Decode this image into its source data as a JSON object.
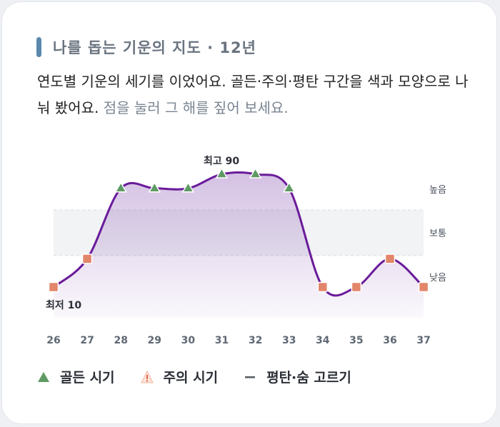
{
  "header": {
    "title": "나를 돕는 기운의 지도 · 12년",
    "desc_main": "연도별 기운의 세기를 이었어요. 골든·주의·평탄 구간을 색과 모양으로 나눠 봤어요.",
    "desc_hint": "점을 눌러 그 해를 짚어 보세요."
  },
  "chart_data": {
    "type": "line",
    "x": [
      "26",
      "27",
      "28",
      "29",
      "30",
      "31",
      "32",
      "33",
      "34",
      "35",
      "36",
      "37"
    ],
    "series": [
      {
        "values": [
          10,
          30,
          80,
          80,
          80,
          90,
          90,
          80,
          10,
          10,
          30,
          10
        ],
        "markers": [
          "caution",
          "caution",
          "golden",
          "golden",
          "golden",
          "golden",
          "golden",
          "golden",
          "caution",
          "caution",
          "caution",
          "caution"
        ]
      }
    ],
    "ylim": [
      0,
      100
    ],
    "band_labels": [
      "높음",
      "보통",
      "낮음"
    ],
    "annotations": {
      "max": "최고 90",
      "min": "최저 10"
    },
    "colors": {
      "line": "#6a1b9a",
      "golden": "#5e9a63",
      "caution": "#e2866a",
      "band": "#eef0f3"
    }
  },
  "legend": {
    "golden": "골든 시기",
    "caution": "주의 시기",
    "flat": "평탄·숨 고르기"
  }
}
